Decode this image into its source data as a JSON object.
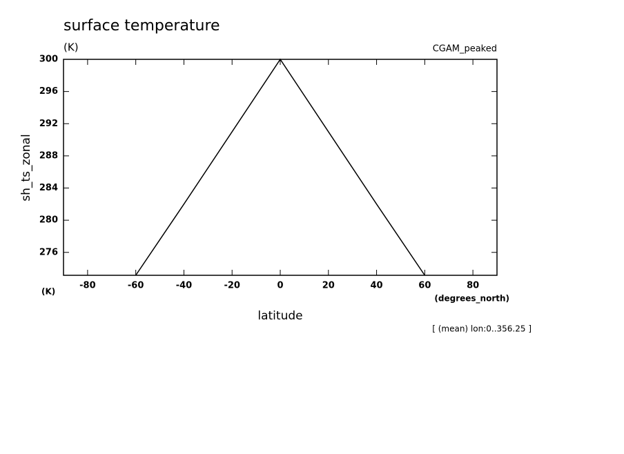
{
  "chart_data": {
    "type": "line",
    "title": "surface temperature",
    "units": "(K)",
    "dataset": "CGAM_peaked",
    "y_label": "sh_ts_zonal",
    "y_units": "(K)",
    "x_label": "latitude",
    "x_units": "(degrees_north)",
    "annotation": "[ (mean) lon:0..356.25 ]",
    "x": [
      -60,
      -40,
      -20,
      0,
      20,
      40,
      60
    ],
    "values": [
      273.15,
      282,
      291,
      300,
      291,
      282,
      273.15
    ],
    "color": "#000000",
    "xlim": [
      -90,
      90
    ],
    "xticks": [
      -80,
      -60,
      -40,
      -20,
      0,
      20,
      40,
      60,
      80
    ],
    "ylim": [
      273.15,
      300
    ],
    "yticks": [
      276,
      280,
      284,
      288,
      292,
      296,
      300
    ]
  }
}
